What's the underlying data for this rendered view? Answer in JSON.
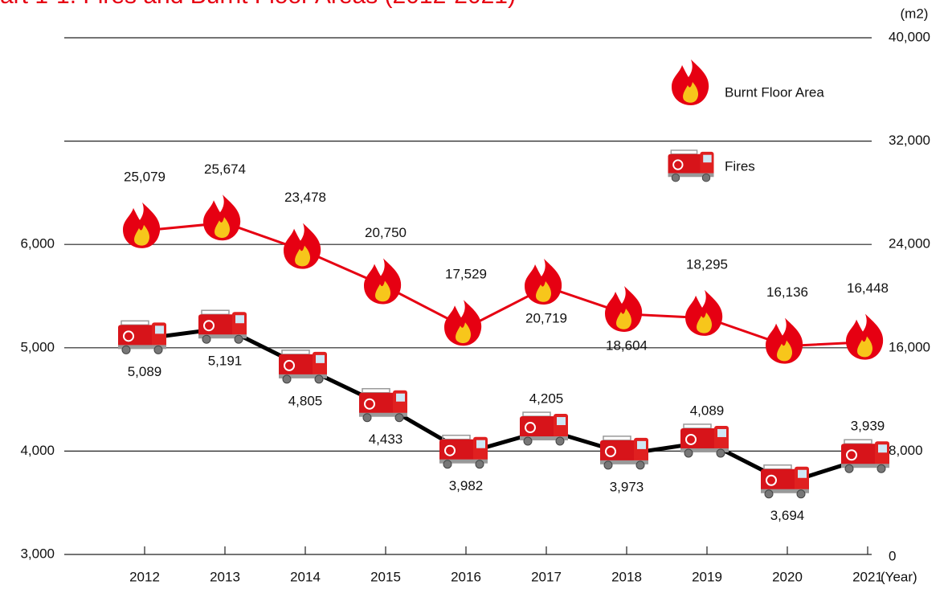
{
  "chart_data": {
    "type": "line",
    "title": "art 1-1. Fires and Burnt Floor Areas (2012-2021)",
    "y_unit": "(m2)",
    "x_unit": "(Year)",
    "categories": [
      "2012",
      "2013",
      "2014",
      "2015",
      "2016",
      "2017",
      "2018",
      "2019",
      "2020",
      "2021"
    ],
    "ylim": [
      3000,
      8000
    ],
    "yticks": [
      {
        "value": 3000,
        "label": "3,000"
      },
      {
        "value": 4000,
        "label": "4,000"
      },
      {
        "value": 5000,
        "label": "5,000"
      },
      {
        "value": 6000,
        "label": "6,000"
      }
    ],
    "y2lim": [
      0,
      40000
    ],
    "y2ticks": [
      0,
      {
        "value": 8000,
        "label": "8,000"
      },
      {
        "value": 16000,
        "label": "16,000"
      },
      {
        "value": 24000,
        "label": "24,000"
      },
      {
        "value": 32000,
        "label": "32,000"
      },
      {
        "value": 40000,
        "label": "40,000"
      }
    ],
    "grid": true,
    "series": [
      {
        "name": "Burnt Floor Area",
        "color": "#e60012",
        "axis": "y2",
        "marker": "flame",
        "values": [
          25079,
          25674,
          23478,
          20750,
          17529,
          20719,
          18604,
          18295,
          16136,
          16448
        ],
        "value_labels": [
          "25,079",
          "25,674",
          "23,478",
          "20,750",
          "17,529",
          "20,719",
          "18,604",
          "18,295",
          "16,136",
          "16,448"
        ]
      },
      {
        "name": "Fires",
        "color": "#000000",
        "axis": "y",
        "marker": "truck",
        "values": [
          5089,
          5191,
          4805,
          4433,
          3982,
          4205,
          3973,
          4089,
          3694,
          3939
        ],
        "value_labels": [
          "5,089",
          "5,191",
          "4,805",
          "4,433",
          "3,982",
          "4,205",
          "3,973",
          "4,089",
          "3,694",
          "3,939"
        ]
      }
    ]
  }
}
